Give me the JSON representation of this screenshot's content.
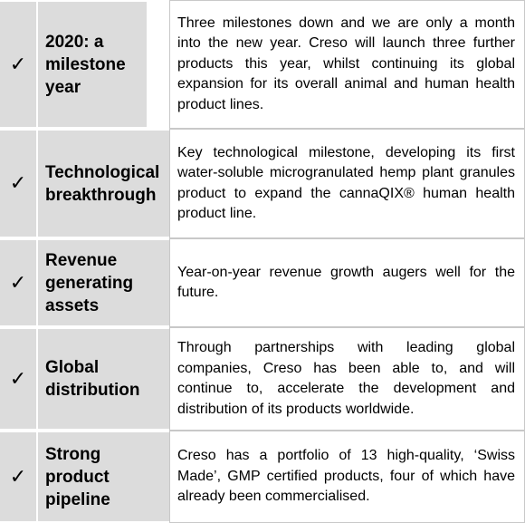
{
  "rows": [
    {
      "check": "✓",
      "title": "2020: a milestone year",
      "description": "Three milestones down and we are only a month into the new year. Creso will launch three further products this year, whilst continuing its global expansion for its overall animal and human health product lines."
    },
    {
      "check": "✓",
      "title": "Technological breakthrough",
      "description": "Key technological milestone, developing its first water-soluble microgranulated hemp plant granules product to expand the cannaQIX® human health product line."
    },
    {
      "check": "✓",
      "title": "Revenue generating assets",
      "description": "Year-on-year revenue growth augers well for the future."
    },
    {
      "check": "✓",
      "title": "Global distribution",
      "description": "Through partnerships with leading global companies, Creso has been able to, and will continue to, accelerate the development and distribution of its products worldwide."
    },
    {
      "check": "✓",
      "title": "Strong product pipeline",
      "description": "Creso has a portfolio of 13 high-quality, ‘Swiss Made’, GMP certified products, four of which have already been commercialised."
    }
  ]
}
